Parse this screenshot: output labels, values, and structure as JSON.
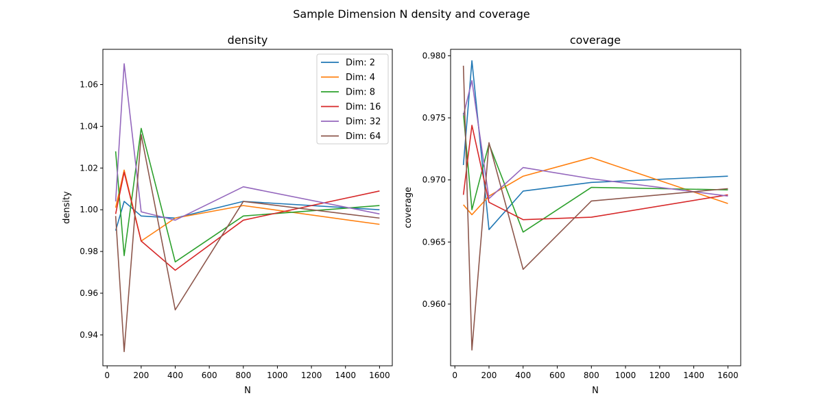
{
  "figure": {
    "suptitle": "Sample Dimension N density and coverage"
  },
  "colors": [
    "#1f77b4",
    "#ff7f0e",
    "#2ca02c",
    "#d62728",
    "#9467bd",
    "#8c564b"
  ],
  "chart_data": [
    {
      "type": "line",
      "title": "density",
      "xlabel": "N",
      "ylabel": "density",
      "xlim": [
        -25,
        1675
      ],
      "ylim": [
        0.9252,
        1.0769
      ],
      "xticks": [
        0,
        200,
        400,
        600,
        800,
        1000,
        1200,
        1400,
        1600
      ],
      "yticks": [
        0.94,
        0.96,
        0.98,
        1.0,
        1.02,
        1.04,
        1.06
      ],
      "legend": "top-right",
      "x": [
        50,
        100,
        200,
        400,
        800,
        1600
      ],
      "series": [
        {
          "name": "Dim: 2",
          "values": [
            0.99,
            1.004,
            0.997,
            0.996,
            1.004,
            1.0
          ]
        },
        {
          "name": "Dim: 4",
          "values": [
            1.001,
            1.019,
            0.985,
            0.996,
            1.002,
            0.993
          ]
        },
        {
          "name": "Dim: 8",
          "values": [
            1.028,
            0.978,
            1.039,
            0.975,
            0.997,
            1.002
          ]
        },
        {
          "name": "Dim: 16",
          "values": [
            0.998,
            1.018,
            0.985,
            0.971,
            0.995,
            1.009
          ]
        },
        {
          "name": "Dim: 32",
          "values": [
            1.004,
            1.07,
            0.999,
            0.995,
            1.011,
            0.998
          ]
        },
        {
          "name": "Dim: 64",
          "values": [
            0.997,
            0.932,
            1.036,
            0.952,
            1.004,
            0.996
          ]
        }
      ]
    },
    {
      "type": "line",
      "title": "coverage",
      "xlabel": "N",
      "ylabel": "coverage",
      "xlim": [
        -25,
        1675
      ],
      "ylim": [
        0.95503,
        0.98052
      ],
      "xticks": [
        0,
        200,
        400,
        600,
        800,
        1000,
        1200,
        1400,
        1600
      ],
      "yticks": [
        0.96,
        0.965,
        0.97,
        0.975,
        0.98
      ],
      "x": [
        50,
        100,
        200,
        400,
        800,
        1600
      ],
      "series": [
        {
          "name": "Dim: 2",
          "values": [
            0.9712,
            0.9796,
            0.966,
            0.9691,
            0.9698,
            0.9703
          ]
        },
        {
          "name": "Dim: 4",
          "values": [
            0.968,
            0.9672,
            0.9687,
            0.9703,
            0.9718,
            0.9681
          ]
        },
        {
          "name": "Dim: 8",
          "values": [
            0.9754,
            0.9676,
            0.9729,
            0.9658,
            0.9694,
            0.9692
          ]
        },
        {
          "name": "Dim: 16",
          "values": [
            0.9688,
            0.9744,
            0.9682,
            0.9668,
            0.967,
            0.9688
          ]
        },
        {
          "name": "Dim: 32",
          "values": [
            0.9752,
            0.978,
            0.9685,
            0.971,
            0.9701,
            0.9687
          ]
        },
        {
          "name": "Dim: 64",
          "values": [
            0.9792,
            0.9563,
            0.973,
            0.9628,
            0.9683,
            0.9693
          ]
        }
      ]
    }
  ]
}
